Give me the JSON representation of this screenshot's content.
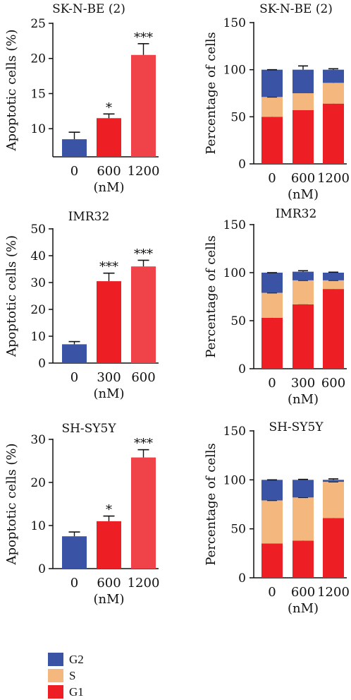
{
  "colors": {
    "g1": "#ED1F24",
    "s": "#F4B87F",
    "g2": "#3A53A4",
    "light_red": "#F04349",
    "axis": "#111111"
  },
  "legend": {
    "items": [
      {
        "label": "G2",
        "color": "#3A53A4"
      },
      {
        "label": "S",
        "color": "#F4B87F"
      },
      {
        "label": "G1",
        "color": "#ED1F24"
      }
    ]
  },
  "chart_data": [
    {
      "type": "bar",
      "title": "SK-N-BE (2)",
      "ylabel": "Apoptotic cells (%)",
      "categories": [
        "0",
        "600",
        "1200"
      ],
      "unit_label": "(nM)",
      "values": [
        8.5,
        11.5,
        20.5
      ],
      "errors": [
        1.0,
        0.6,
        1.6
      ],
      "significance": [
        "",
        "*",
        "***"
      ],
      "bar_colors": [
        "#3A53A4",
        "#ED1F24",
        "#F04349"
      ],
      "ylim": [
        6,
        25
      ],
      "yticks": [
        5,
        10,
        15,
        20,
        25
      ]
    },
    {
      "type": "bar",
      "stacked": true,
      "title": "SK-N-BE (2)",
      "ylabel": "Percentage of cells",
      "categories": [
        "0",
        "600",
        "1200"
      ],
      "unit_label": "(nM)",
      "ylim": [
        0,
        150
      ],
      "yticks": [
        0,
        50,
        100,
        150
      ],
      "series": [
        {
          "name": "G1",
          "values": [
            50,
            57,
            64
          ],
          "errors": [
            1,
            1,
            2
          ]
        },
        {
          "name": "S",
          "values": [
            21,
            18,
            22
          ],
          "errors": [
            0,
            2,
            1
          ]
        },
        {
          "name": "G2",
          "values": [
            29,
            25,
            14
          ],
          "errors": [
            0,
            4,
            1
          ]
        }
      ]
    },
    {
      "type": "bar",
      "title": "IMR32",
      "ylabel": "Apoptotic cells (%)",
      "categories": [
        "0",
        "300",
        "600"
      ],
      "unit_label": "(nM)",
      "values": [
        7,
        30.5,
        36
      ],
      "errors": [
        1.0,
        3.0,
        2.3
      ],
      "significance": [
        "",
        "***",
        "***"
      ],
      "bar_colors": [
        "#3A53A4",
        "#ED1F24",
        "#F04349"
      ],
      "ylim": [
        0,
        50
      ],
      "yticks": [
        0,
        10,
        20,
        30,
        40,
        50
      ]
    },
    {
      "type": "bar",
      "stacked": true,
      "title": "IMR32",
      "ylabel": "Percentage of cells",
      "categories": [
        "0",
        "300",
        "600"
      ],
      "unit_label": "(nM)",
      "ylim": [
        0,
        150
      ],
      "yticks": [
        0,
        50,
        100,
        150
      ],
      "series": [
        {
          "name": "G1",
          "values": [
            53,
            67,
            83
          ],
          "errors": [
            1,
            0.5,
            1
          ]
        },
        {
          "name": "S",
          "values": [
            26,
            25,
            9
          ],
          "errors": [
            0,
            0,
            0
          ]
        },
        {
          "name": "G2",
          "values": [
            21,
            9,
            8
          ],
          "errors": [
            0,
            1,
            0.5
          ]
        }
      ]
    },
    {
      "type": "bar",
      "title": "SH-SY5Y",
      "ylabel": "Apoptotic cells (%)",
      "categories": [
        "0",
        "600",
        "1200"
      ],
      "unit_label": "(nM)",
      "values": [
        7.5,
        11,
        25.8
      ],
      "errors": [
        1.0,
        1.2,
        1.8
      ],
      "significance": [
        "",
        "*",
        "***"
      ],
      "bar_colors": [
        "#3A53A4",
        "#ED1F24",
        "#F04349"
      ],
      "ylim": [
        0,
        30
      ],
      "yticks": [
        0,
        10,
        20,
        30
      ]
    },
    {
      "type": "bar",
      "stacked": true,
      "title": "SH-SY5Y",
      "ylabel": "Percentage of cells",
      "categories": [
        "0",
        "600",
        "1200"
      ],
      "unit_label": "(nM)",
      "ylim": [
        0,
        150
      ],
      "yticks": [
        0,
        50,
        100,
        150
      ],
      "series": [
        {
          "name": "G1",
          "values": [
            35,
            38,
            61
          ],
          "errors": [
            1,
            1,
            1
          ]
        },
        {
          "name": "S",
          "values": [
            44,
            44,
            37
          ],
          "errors": [
            0,
            0,
            0
          ]
        },
        {
          "name": "G2",
          "values": [
            21,
            18,
            2
          ],
          "errors": [
            0,
            0.5,
            1
          ]
        }
      ]
    }
  ]
}
